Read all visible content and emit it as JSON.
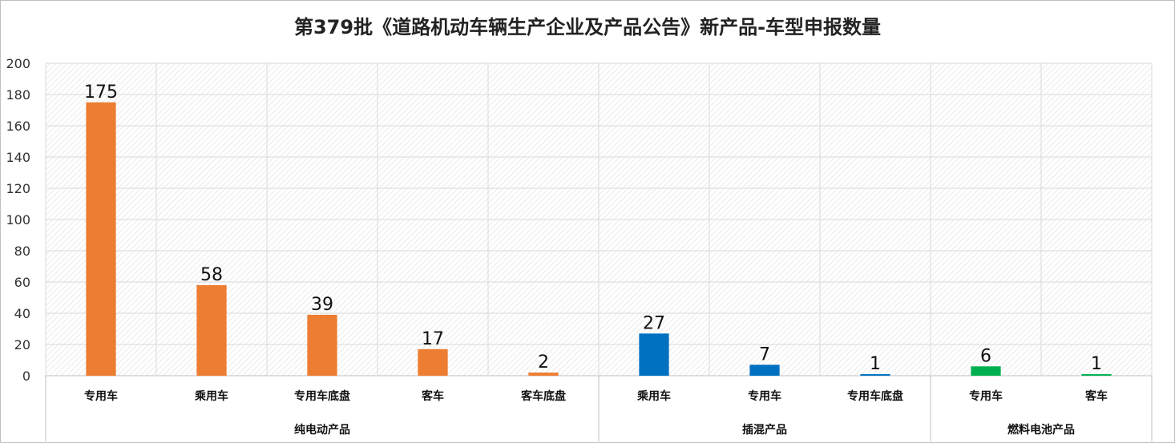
{
  "chart_data": {
    "type": "bar",
    "title": "第379批《道路机动车辆生产企业及产品公告》新产品-车型申报数量",
    "xlabel": "",
    "ylabel": "",
    "ylim": [
      0,
      200
    ],
    "yticks": [
      0,
      20,
      40,
      60,
      80,
      100,
      120,
      140,
      160,
      180,
      200
    ],
    "grid": true,
    "legend": "none",
    "groups": [
      {
        "name": "纯电动产品",
        "color": "#ED7D31",
        "categories": [
          "专用车",
          "乘用车",
          "专用车底盘",
          "客车",
          "客车底盘"
        ],
        "values": [
          175,
          58,
          39,
          17,
          2
        ]
      },
      {
        "name": "插混产品",
        "color": "#0070C0",
        "categories": [
          "乘用车",
          "专用车",
          "专用车底盘"
        ],
        "values": [
          27,
          7,
          1
        ]
      },
      {
        "name": "燃料电池产品",
        "color": "#00B050",
        "categories": [
          "专用车",
          "客车"
        ],
        "values": [
          6,
          1
        ]
      }
    ]
  }
}
